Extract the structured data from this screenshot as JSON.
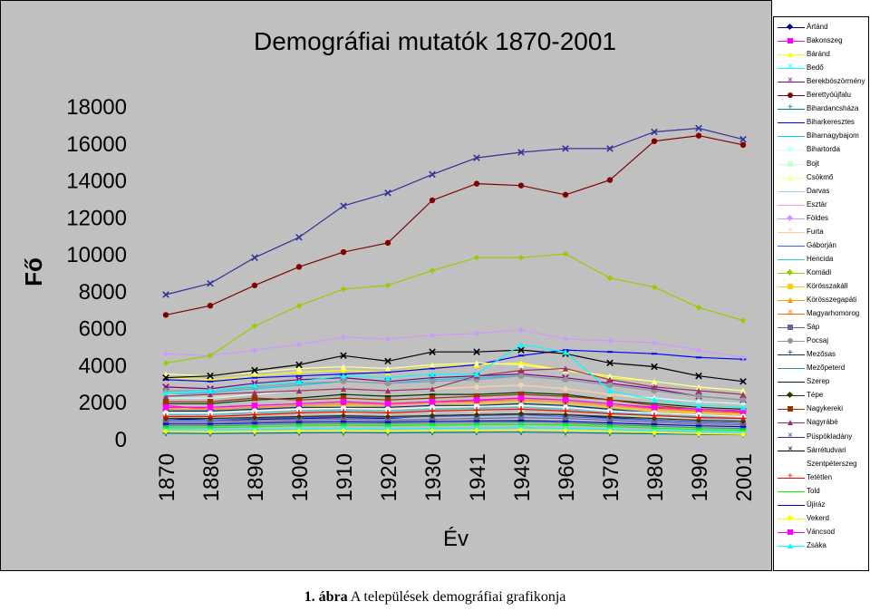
{
  "caption": {
    "label": "1. ábra",
    "text": "A települések demográfiai grafikonja"
  },
  "chart_data": {
    "type": "line",
    "title": "Demográfiai mutatók 1870-2001",
    "xlabel": "Év",
    "ylabel": "Fő",
    "ylim": [
      0,
      18000
    ],
    "yticks": [
      0,
      2000,
      4000,
      6000,
      8000,
      10000,
      12000,
      14000,
      16000,
      18000
    ],
    "grid": false,
    "legend_position": "right",
    "categories": [
      "1870",
      "1880",
      "1890",
      "1900",
      "1910",
      "1920",
      "1930",
      "1941",
      "1949",
      "1960",
      "1970",
      "1980",
      "1990",
      "2001"
    ],
    "series": [
      {
        "name": "Ártánd",
        "color": "#000080",
        "marker": "diamond",
        "values": [
          1100,
          1000,
          1050,
          1100,
          1150,
          1100,
          1250,
          1300,
          1350,
          1300,
          1150,
          1000,
          900,
          850
        ]
      },
      {
        "name": "Bakonszeg",
        "color": "#ff00ff",
        "marker": "square",
        "values": [
          1800,
          1600,
          1700,
          1800,
          1900,
          1850,
          2000,
          2050,
          2100,
          2000,
          1800,
          1650,
          1500,
          1450
        ]
      },
      {
        "name": "Báránd",
        "color": "#ffff00",
        "marker": "triangle",
        "values": [
          3300,
          3200,
          3400,
          3600,
          3700,
          3600,
          3900,
          4000,
          4100,
          3700,
          3300,
          3100,
          2800,
          2600
        ]
      },
      {
        "name": "Bedő",
        "color": "#00ffff",
        "marker": "x",
        "values": [
          500,
          480,
          500,
          520,
          540,
          520,
          560,
          580,
          600,
          560,
          500,
          450,
          400,
          380
        ]
      },
      {
        "name": "Berekböszörmény",
        "color": "#800080",
        "marker": "x",
        "values": [
          2800,
          2700,
          3000,
          3200,
          3300,
          3100,
          3300,
          3400,
          3500,
          3300,
          3000,
          2700,
          2300,
          2100
        ]
      },
      {
        "name": "Berettyóújfalu",
        "color": "#800000",
        "marker": "circle",
        "values": [
          6700,
          7200,
          8300,
          9300,
          10100,
          10600,
          12900,
          13800,
          13700,
          13200,
          14000,
          16100,
          16400,
          15900
        ]
      },
      {
        "name": "Bihardancsháza",
        "color": "#008080",
        "marker": "plus",
        "values": [
          300,
          280,
          300,
          320,
          330,
          320,
          340,
          350,
          360,
          330,
          300,
          270,
          240,
          220
        ]
      },
      {
        "name": "Biharkeresztes",
        "color": "#0000ff",
        "marker": "dash",
        "values": [
          3200,
          3100,
          3300,
          3400,
          3500,
          3600,
          3800,
          4000,
          4500,
          4800,
          4700,
          4600,
          4400,
          4300
        ]
      },
      {
        "name": "Biharnagybajom",
        "color": "#00ccff",
        "marker": "dash",
        "values": [
          2400,
          2500,
          2700,
          2900,
          3100,
          3000,
          3200,
          3300,
          3400,
          3200,
          2900,
          2600,
          2300,
          2100
        ]
      },
      {
        "name": "Bihartorda",
        "color": "#ccffff",
        "marker": "diamond",
        "values": [
          2200,
          2200,
          2400,
          2600,
          2700,
          2600,
          2700,
          2800,
          2900,
          2700,
          2400,
          2200,
          2000,
          1900
        ]
      },
      {
        "name": "Bojt",
        "color": "#ccffcc",
        "marker": "square",
        "values": [
          1200,
          1200,
          1300,
          1400,
          1400,
          1400,
          1500,
          1500,
          1600,
          1500,
          1300,
          1200,
          1100,
          1000
        ]
      },
      {
        "name": "Csökmő",
        "color": "#ffff99",
        "marker": "triangle",
        "values": [
          3500,
          3400,
          3600,
          3800,
          3900,
          3800,
          4000,
          4100,
          4000,
          3700,
          3400,
          3100,
          2800,
          2600
        ]
      },
      {
        "name": "Darvas",
        "color": "#99ccff",
        "marker": "dash",
        "values": [
          1500,
          1500,
          1600,
          1700,
          1800,
          1700,
          1800,
          1900,
          2000,
          1800,
          1500,
          1300,
          1100,
          1000
        ]
      },
      {
        "name": "Esztár",
        "color": "#ff99cc",
        "marker": "dash",
        "values": [
          1600,
          1600,
          1700,
          1800,
          1900,
          1800,
          1900,
          2000,
          2100,
          2000,
          1800,
          1600,
          1500,
          1400
        ]
      },
      {
        "name": "Földes",
        "color": "#cc99ff",
        "marker": "diamond",
        "values": [
          4600,
          4500,
          4800,
          5100,
          5500,
          5400,
          5600,
          5700,
          5900,
          5400,
          5300,
          5200,
          4800,
          4400
        ]
      },
      {
        "name": "Furta",
        "color": "#ffcc99",
        "marker": "plus",
        "values": [
          2400,
          2300,
          2500,
          2600,
          2700,
          2600,
          2700,
          2800,
          2900,
          2700,
          2400,
          2100,
          1800,
          1600
        ]
      },
      {
        "name": "Gáborján",
        "color": "#3366ff",
        "marker": "dash",
        "values": [
          1000,
          1000,
          1100,
          1150,
          1200,
          1150,
          1200,
          1250,
          1300,
          1200,
          1100,
          1000,
          900,
          850
        ]
      },
      {
        "name": "Hencida",
        "color": "#33cccc",
        "marker": "dash",
        "values": [
          1300,
          1300,
          1400,
          1500,
          1550,
          1500,
          1600,
          1650,
          1700,
          1600,
          1400,
          1300,
          1200,
          1100
        ]
      },
      {
        "name": "Komádi",
        "color": "#99cc00",
        "marker": "diamond",
        "values": [
          4100,
          4500,
          6100,
          7200,
          8100,
          8300,
          9100,
          9800,
          9800,
          10000,
          8700,
          8200,
          7100,
          6400
        ]
      },
      {
        "name": "Körösszakáll",
        "color": "#ffcc00",
        "marker": "square",
        "values": [
          1500,
          1500,
          1600,
          1700,
          1800,
          1700,
          1800,
          1900,
          2000,
          1900,
          1700,
          1500,
          1400,
          1300
        ]
      },
      {
        "name": "Körösszegapáti",
        "color": "#ff9900",
        "marker": "triangle",
        "values": [
          1600,
          1600,
          1700,
          1800,
          1900,
          1850,
          1950,
          2000,
          2100,
          2000,
          1800,
          1600,
          1500,
          1400
        ]
      },
      {
        "name": "Magyarhomorog",
        "color": "#ff6600",
        "marker": "x",
        "values": [
          1700,
          1700,
          1800,
          1900,
          2000,
          1900,
          2000,
          2100,
          2200,
          2100,
          1900,
          1700,
          1500,
          1400
        ]
      },
      {
        "name": "Sáp",
        "color": "#666699",
        "marker": "square",
        "values": [
          900,
          900,
          950,
          1000,
          1050,
          1000,
          1050,
          1100,
          1150,
          1100,
          1000,
          900,
          800,
          750
        ]
      },
      {
        "name": "Pocsaj",
        "color": "#969696",
        "marker": "circle",
        "values": [
          2600,
          2600,
          2800,
          3000,
          3100,
          3000,
          3100,
          3200,
          3400,
          3200,
          2900,
          2600,
          2300,
          2100
        ]
      },
      {
        "name": "Mezősas",
        "color": "#003366",
        "marker": "plus",
        "values": [
          1500,
          1500,
          1600,
          1700,
          1700,
          1700,
          1800,
          1800,
          1900,
          1800,
          1600,
          1400,
          1300,
          1200
        ]
      },
      {
        "name": "Mezőpeterd",
        "color": "#339966",
        "marker": "dash",
        "values": [
          700,
          700,
          750,
          800,
          820,
          800,
          850,
          870,
          900,
          850,
          760,
          680,
          600,
          560
        ]
      },
      {
        "name": "Szerep",
        "color": "#003300",
        "marker": "dash",
        "values": [
          1900,
          1900,
          2100,
          2200,
          2400,
          2300,
          2400,
          2400,
          2500,
          2400,
          2100,
          1900,
          1700,
          1600
        ]
      },
      {
        "name": "Tépe",
        "color": "#333300",
        "marker": "diamond",
        "values": [
          1100,
          1100,
          1150,
          1200,
          1250,
          1200,
          1250,
          1300,
          1350,
          1300,
          1200,
          1100,
          1000,
          950
        ]
      },
      {
        "name": "Nagykereki",
        "color": "#993300",
        "marker": "square",
        "values": [
          2000,
          2000,
          2200,
          2100,
          2200,
          2100,
          2200,
          2300,
          2400,
          2300,
          2100,
          1800,
          1600,
          1500
        ]
      },
      {
        "name": "Nagyrábé",
        "color": "#993366",
        "marker": "triangle",
        "values": [
          2300,
          2400,
          2500,
          2600,
          2700,
          2600,
          2700,
          3400,
          3700,
          3800,
          3200,
          2800,
          2600,
          2400
        ]
      },
      {
        "name": "Püspökladány",
        "color": "#333399",
        "marker": "x",
        "values": [
          7800,
          8400,
          9800,
          10900,
          12600,
          13300,
          14300,
          15200,
          15500,
          15700,
          15700,
          16600,
          16800,
          16200
        ]
      },
      {
        "name": "Sárrétudvari",
        "color": "#000000",
        "marker": "x",
        "values": [
          3300,
          3400,
          3700,
          4000,
          4500,
          4200,
          4700,
          4700,
          4800,
          4600,
          4100,
          3900,
          3400,
          3100
        ]
      },
      {
        "name": "Szentpéterszeg",
        "color": "#ffffff",
        "marker": "circle",
        "values": [
          1400,
          1400,
          1500,
          1600,
          1650,
          1600,
          1700,
          1750,
          1800,
          1700,
          1500,
          1400,
          1300,
          1200
        ]
      },
      {
        "name": "Tetétlen",
        "color": "#ff0000",
        "marker": "plus",
        "values": [
          1200,
          1200,
          1300,
          1400,
          1450,
          1400,
          1500,
          1550,
          1600,
          1500,
          1350,
          1250,
          1150,
          1100
        ]
      },
      {
        "name": "Told",
        "color": "#00ff00",
        "marker": "dash",
        "values": [
          600,
          600,
          650,
          700,
          720,
          700,
          740,
          760,
          780,
          740,
          660,
          580,
          500,
          460
        ]
      },
      {
        "name": "Újiráz",
        "color": "#0000cc",
        "marker": "dash",
        "values": [
          800,
          800,
          850,
          900,
          920,
          900,
          940,
          960,
          980,
          940,
          860,
          780,
          700,
          650
        ]
      },
      {
        "name": "Vekerd",
        "color": "#ffff00",
        "marker": "diamond",
        "values": [
          400,
          380,
          400,
          420,
          440,
          420,
          450,
          460,
          480,
          460,
          400,
          340,
          280,
          240
        ]
      },
      {
        "name": "Váncsod",
        "color": "#ff00ff",
        "marker": "square",
        "values": [
          1700,
          1700,
          1800,
          1900,
          2000,
          1900,
          2000,
          2100,
          2200,
          2100,
          1900,
          1700,
          1600,
          1500
        ]
      },
      {
        "name": "Zsáka",
        "color": "#00ffff",
        "marker": "triangle",
        "values": [
          2500,
          2600,
          2900,
          3100,
          3400,
          3300,
          3500,
          3500,
          5100,
          4700,
          2600,
          2100,
          1800,
          1700
        ]
      }
    ]
  }
}
